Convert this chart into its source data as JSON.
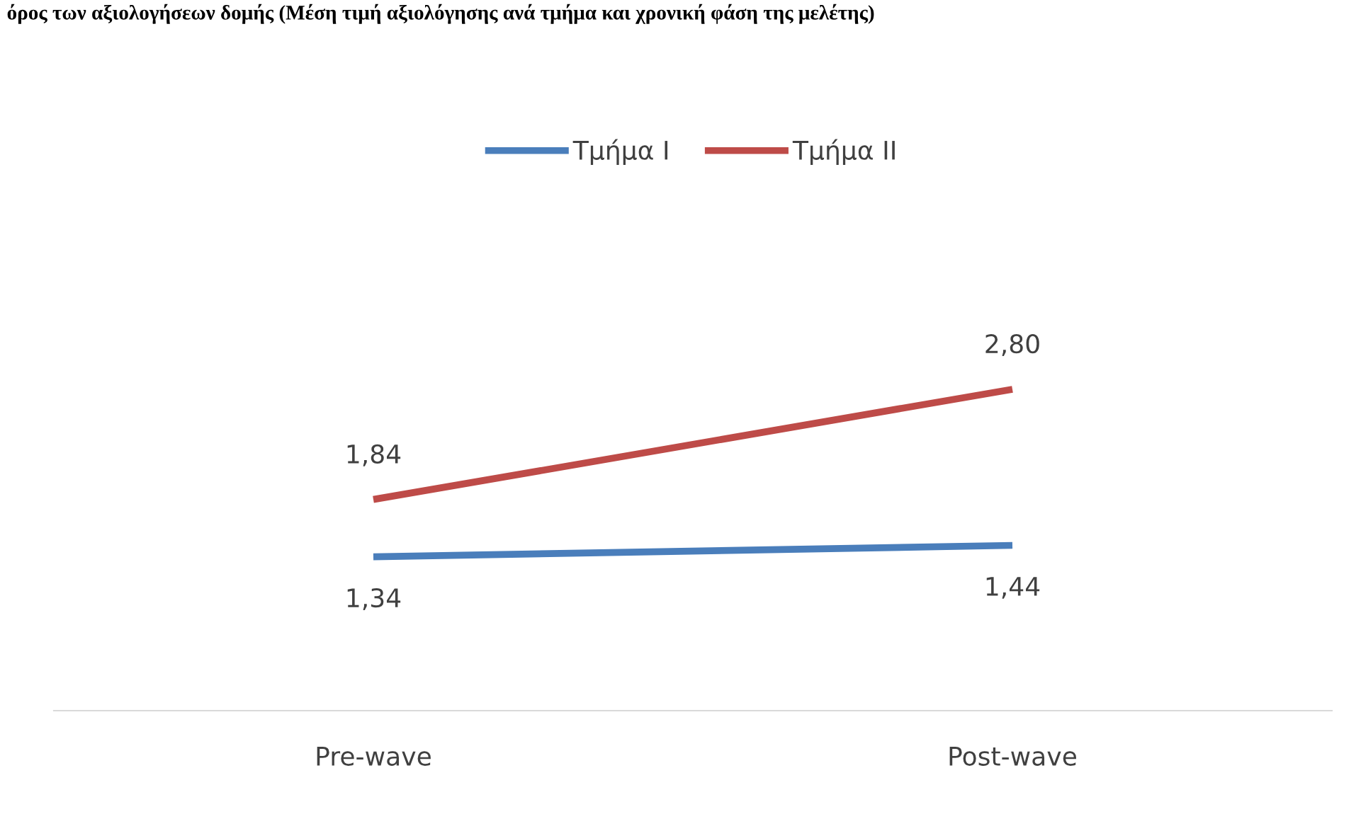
{
  "chart_data": {
    "type": "line",
    "title": "όρος των αξιολογήσεων δομής (Μέση τιμή αξιολόγησης ανά τμήμα και χρονική φάση της μελέτης)",
    "categories": [
      "Pre-wave",
      "Post-wave"
    ],
    "series": [
      {
        "name": "Τμήμα I",
        "color": "#4a7ebb",
        "values": [
          1.34,
          1.44
        ],
        "value_labels": [
          "1,34",
          "1,44"
        ]
      },
      {
        "name": "Τμήμα II",
        "color": "#be4b48",
        "values": [
          1.84,
          2.8
        ],
        "value_labels": [
          "1,84",
          "2,80"
        ]
      }
    ],
    "legend": "top",
    "grid": false,
    "marker": "none",
    "line_style": "solid"
  }
}
